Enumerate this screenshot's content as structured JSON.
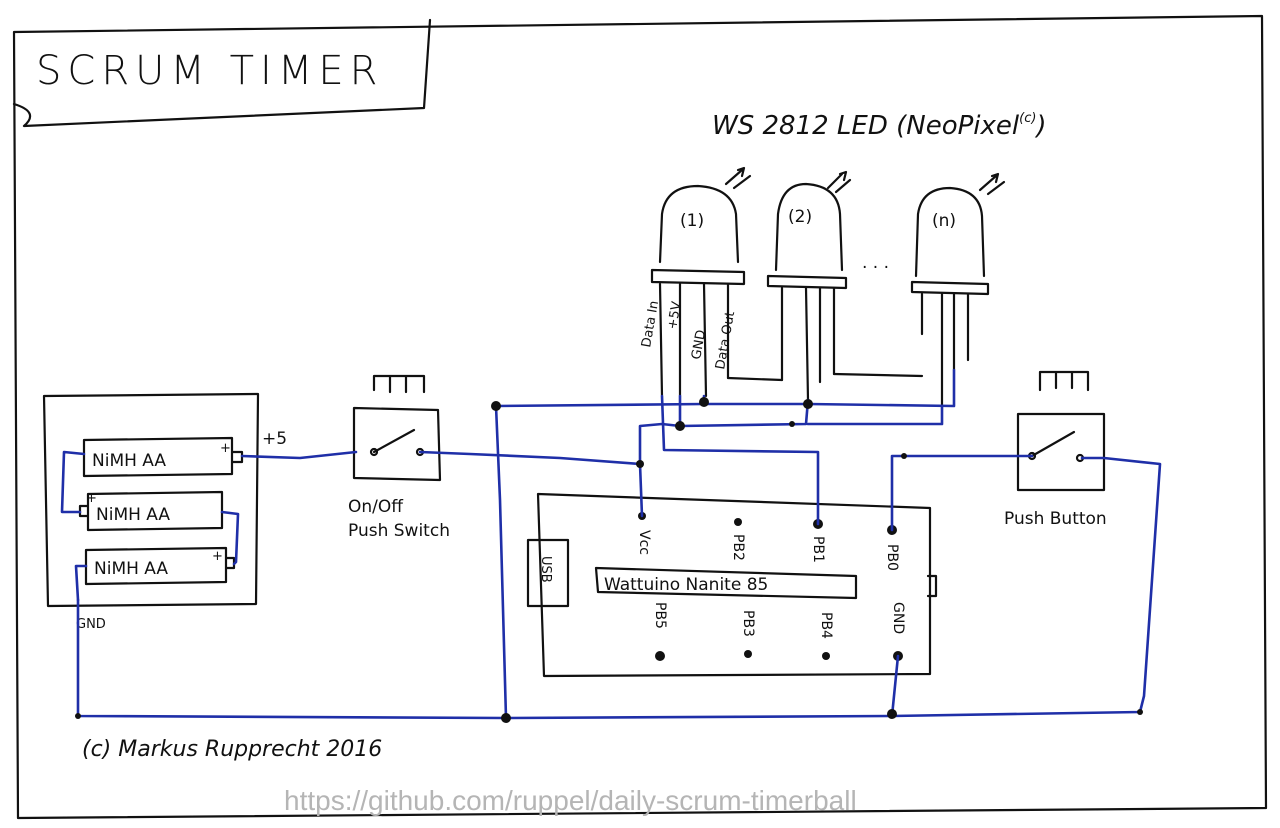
{
  "title": "SCRUM TIMER",
  "led_strip_label": "WS 2812 LED (NeoPixel",
  "led_strip_trademark": "(c)",
  "leds": [
    "(1)",
    "(2)",
    "(n)"
  ],
  "led_ellipsis": ". . .",
  "led_pins": [
    "Data In",
    "+5V",
    "GND",
    "Data Out"
  ],
  "batteries": [
    "NiMH AA",
    "NiMH AA",
    "NiMH AA"
  ],
  "battery_plus": "+",
  "label_plus5": "+5",
  "label_gnd": "GND",
  "switch_label_line1": "On/Off",
  "switch_label_line2": "Push Switch",
  "button_label": "Push Button",
  "board": {
    "usb_label": "USB",
    "name": "Wattuino Nanite 85",
    "top_pins": [
      "Vcc",
      "PB2",
      "PB1",
      "PB0"
    ],
    "bottom_pins": [
      "PB5",
      "PB3",
      "PB4",
      "GND"
    ]
  },
  "copyright": "(c) Markus Rupprecht 2016",
  "source_url": "https://github.com/ruppel/daily-scrum-timerball",
  "colors": {
    "ink": "#111111",
    "wire": "#1f2fa8"
  }
}
